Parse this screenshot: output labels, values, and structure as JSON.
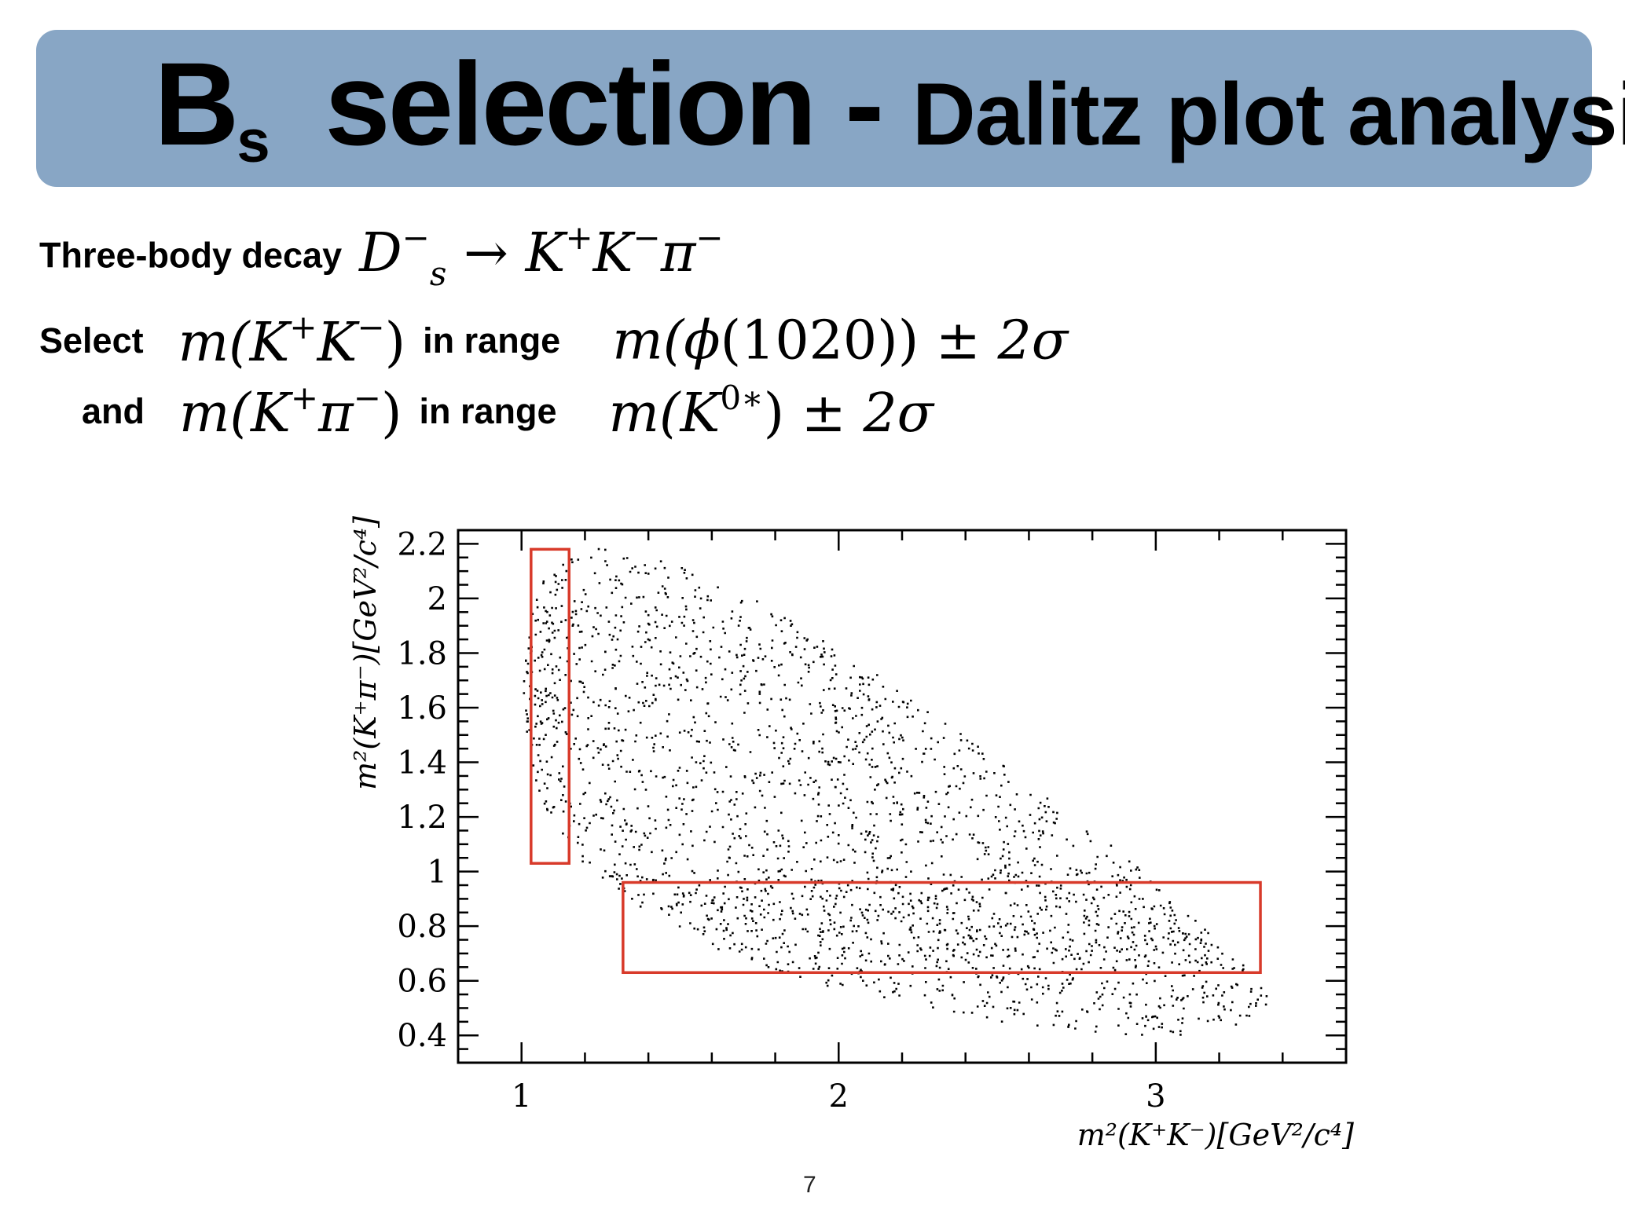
{
  "title": {
    "main_letter": "B",
    "subscript": "s",
    "main_rest": " selection - ",
    "sub": "Dalitz plot analysis"
  },
  "line1": {
    "label": "Three-body decay",
    "math": {
      "D": "D",
      "D_sup": "−",
      "D_sub": "s",
      "arrow": "→",
      "K1": "K",
      "K1_sup": "+",
      "K2": "K",
      "K2_sup": "−",
      "pi": "π",
      "pi_sup": "−"
    }
  },
  "line2": {
    "label": "Select",
    "mass_expr": {
      "m": "m(",
      "K1": "K",
      "K1_sup": "+",
      "K2": "K",
      "K2_sup": "−",
      "close": ")"
    },
    "range_label": "in range",
    "range_expr": {
      "m": "m(",
      "phi": "ϕ",
      "rest": "(1020)) ",
      "pm": "±",
      "sig": " 2σ"
    }
  },
  "line3": {
    "label": "and",
    "mass_expr": {
      "m": "m(",
      "K1": "K",
      "K1_sup": "+",
      "pi": "π",
      "pi_sup": "−",
      "close": ")"
    },
    "range_label": "in range",
    "range_expr": {
      "m": "m(",
      "K": "K",
      "K_sup": "0∗",
      "close": ") ",
      "pm": "±",
      "sig": " 2σ"
    }
  },
  "chart_data": {
    "type": "scatter",
    "xlabel": "m²(K⁺K⁻)[GeV²/c⁴]",
    "ylabel": "m²(K⁺π⁻)[GeV²/c⁴]",
    "xlim": [
      0.8,
      3.6
    ],
    "ylim": [
      0.3,
      2.25
    ],
    "x_ticks": [
      1,
      2,
      3
    ],
    "y_ticks": [
      0.4,
      0.6,
      0.8,
      1,
      1.2,
      1.4,
      1.6,
      1.8,
      2,
      2.2
    ],
    "y_tick_labels": [
      "0.4",
      "0.6",
      "0.8",
      "1",
      "1.2",
      "1.4",
      "1.6",
      "1.8",
      "2",
      "2.2"
    ],
    "x_tick_labels": [
      "1",
      "2",
      "3"
    ],
    "selection_boxes": [
      {
        "x": [
          1.03,
          1.15
        ],
        "y": [
          1.03,
          2.18
        ],
        "color": "#d83a2a"
      },
      {
        "x": [
          1.32,
          3.33
        ],
        "y": [
          0.63,
          0.96
        ],
        "color": "#d83a2a"
      }
    ],
    "kinematic_boundary": [
      [
        1.0,
        1.65
      ],
      [
        1.02,
        1.9
      ],
      [
        1.06,
        2.07
      ],
      [
        1.14,
        2.15
      ],
      [
        1.25,
        2.19
      ],
      [
        1.45,
        2.15
      ],
      [
        1.7,
        2.02
      ],
      [
        2.0,
        1.82
      ],
      [
        2.3,
        1.58
      ],
      [
        2.6,
        1.32
      ],
      [
        2.9,
        1.06
      ],
      [
        3.15,
        0.8
      ],
      [
        3.3,
        0.63
      ],
      [
        3.4,
        0.5
      ],
      [
        3.33,
        0.44
      ],
      [
        3.1,
        0.4
      ],
      [
        2.8,
        0.41
      ],
      [
        2.4,
        0.47
      ],
      [
        2.0,
        0.57
      ],
      [
        1.65,
        0.7
      ],
      [
        1.4,
        0.85
      ],
      [
        1.2,
        1.02
      ],
      [
        1.07,
        1.23
      ],
      [
        1.01,
        1.45
      ]
    ],
    "resonance_bands": [
      {
        "name": "ϕ(1020)",
        "axis": "x",
        "center": 1.04,
        "width": 0.07
      },
      {
        "name": "K0*",
        "axis": "y",
        "center": 0.8,
        "width": 0.14
      }
    ]
  },
  "page_number": "7"
}
